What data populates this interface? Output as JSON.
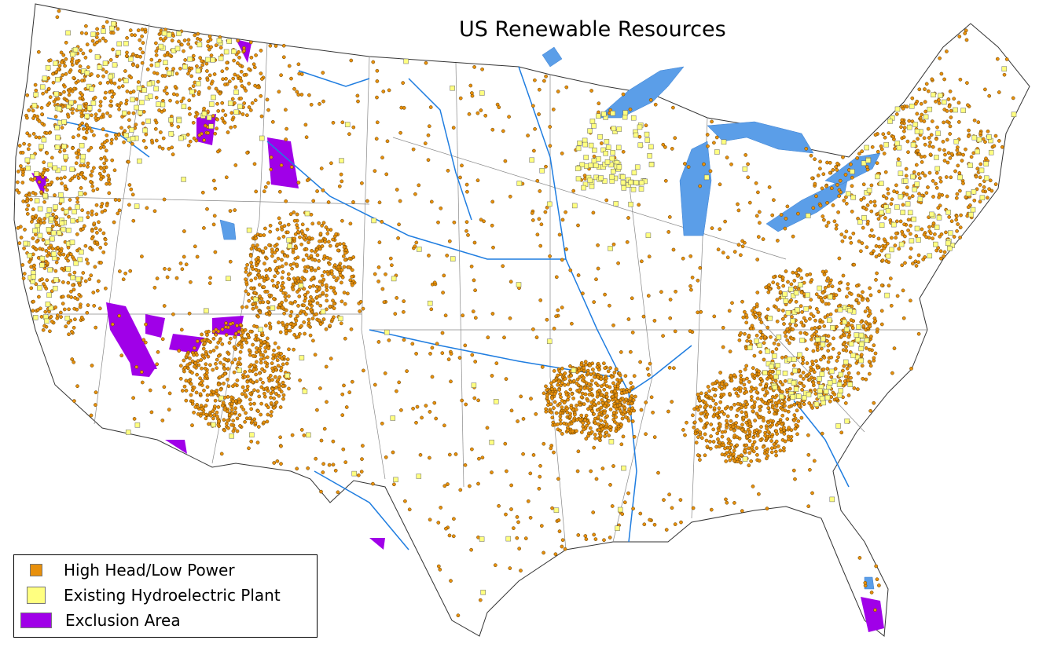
{
  "title": "US Renewable Resources",
  "legend": {
    "items": [
      {
        "label": "High Head/Low Power",
        "color": "#e8900c",
        "symbol": "square-small"
      },
      {
        "label": "Existing Hydroelectric Plant",
        "color": "#ffff80",
        "symbol": "square"
      },
      {
        "label": "Exclusion Area",
        "color": "#a000e8",
        "symbol": "rectangle"
      }
    ]
  },
  "colors": {
    "water": "#5b9ee8",
    "river": "#1f7de0",
    "border": "#555555",
    "land": "#ffffff"
  }
}
